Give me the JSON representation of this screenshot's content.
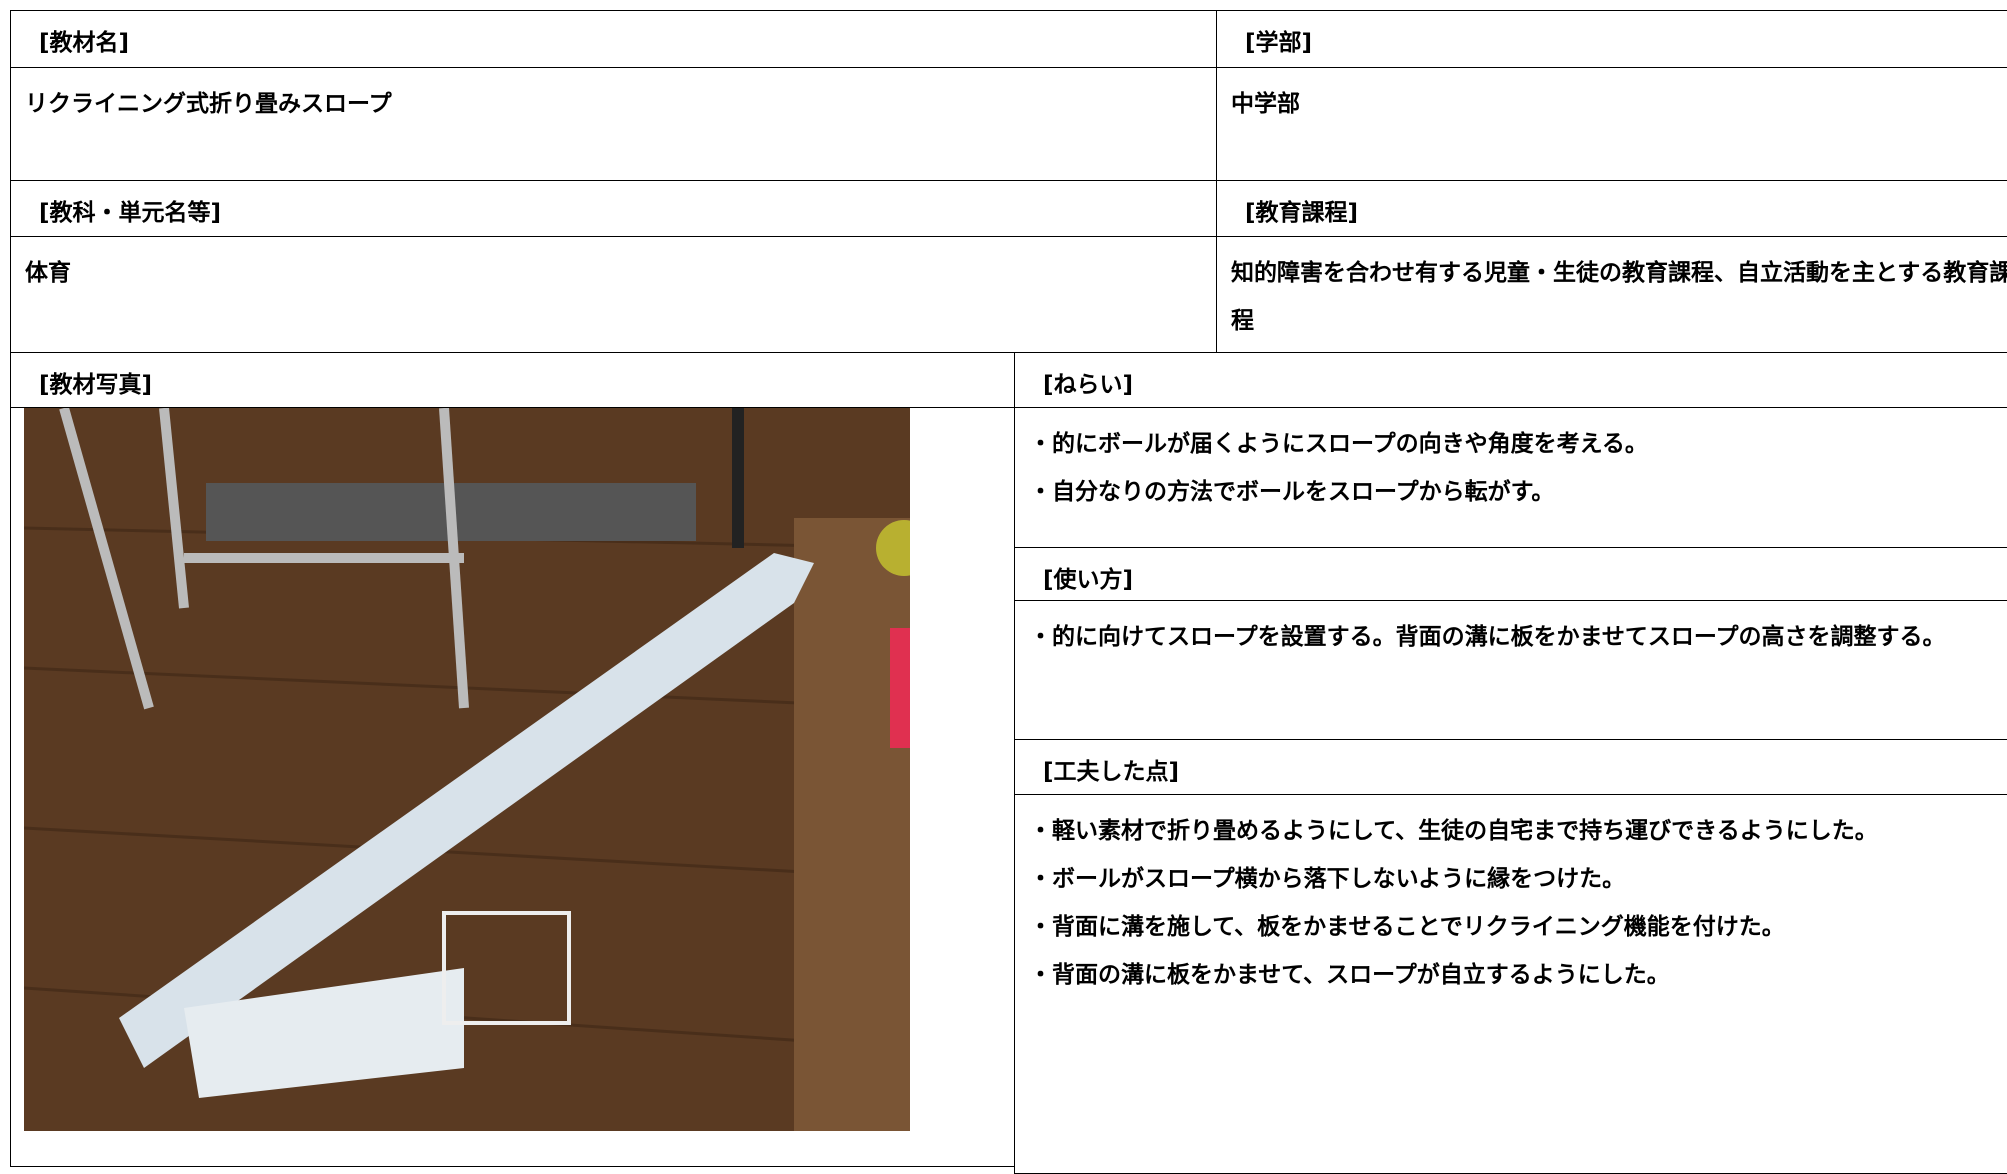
{
  "material_name": {
    "label": "[教材名]",
    "value": "リクライニング式折り畳みスロープ"
  },
  "department": {
    "label": "[学部]",
    "value": "中学部"
  },
  "subject": {
    "label": "[教科・単元名等]",
    "value": "体育"
  },
  "curriculum": {
    "label": "[教育課程]",
    "value": "知的障害を合わせ有する児童・生徒の教育課程、自立活動を主とする教育課程"
  },
  "photo": {
    "label": "[教材写真]"
  },
  "aim": {
    "label": "[ねらい]",
    "items": [
      "・的にボールが届くようにスロープの向きや角度を考える。",
      "・自分なりの方法でボールをスロープから転がす。"
    ]
  },
  "usage": {
    "label": "[使い方]",
    "items": [
      "・的に向けてスロープを設置する。背面の溝に板をかませてスロープの高さを調整する。"
    ]
  },
  "ingenuity": {
    "label": "[工夫した点]",
    "items": [
      "・軽い素材で折り畳めるようにして、生徒の自宅まで持ち運びできるようにした。",
      "・ボールがスロープ横から落下しないように縁をつけた。",
      "・背面に溝を施して、板をかませることでリクライニング機能を付けた。",
      "・背面の溝に板をかませて、スロープが自立するようにした。"
    ]
  }
}
